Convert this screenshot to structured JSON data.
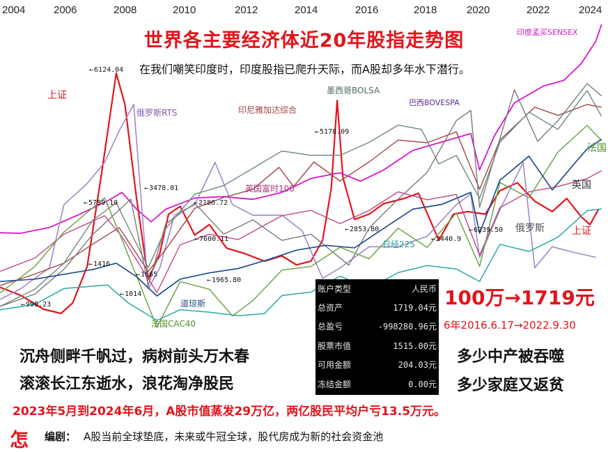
{
  "page": {
    "title": "世界各主要经济体近20年股指走势图",
    "subtitle": "在我们嘲笑印度时，印度股指已爬升天际，而A股却多年水下潜行。"
  },
  "chart_data": {
    "type": "line",
    "x_ticks": [
      "2004",
      "2006",
      "2008",
      "2010",
      "2012",
      "2014",
      "2016",
      "2018",
      "2020",
      "2022",
      "2024"
    ],
    "x_range": [
      2003.8,
      2024.6
    ],
    "grid": false,
    "series": [
      {
        "name": "上证",
        "color": "#e3131b",
        "width": 2.2,
        "x": [
          2003.8,
          2004.5,
          2005.3,
          2005.9,
          2006.3,
          2006.8,
          2007.3,
          2007.8,
          2008.1,
          2008.5,
          2008.9,
          2009.3,
          2009.6,
          2010.0,
          2010.5,
          2011.0,
          2011.6,
          2012.2,
          2012.9,
          2013.5,
          2014.0,
          2014.5,
          2014.9,
          2015.2,
          2015.4,
          2015.6,
          2016.0,
          2016.5,
          2017.0,
          2017.7,
          2018.2,
          2018.9,
          2019.4,
          2019.9,
          2020.5,
          2021.0,
          2021.6,
          2022.2,
          2022.8,
          2023.3,
          2023.8,
          2024.1,
          2024.4
        ],
        "y": [
          1600,
          1450,
          1180,
          1100,
          1300,
          2000,
          3800,
          5700,
          5100,
          3300,
          1750,
          2250,
          3000,
          3150,
          2600,
          2800,
          2350,
          2250,
          2100,
          2200,
          2030,
          2100,
          2500,
          3500,
          5178,
          3700,
          2900,
          3000,
          3200,
          3300,
          3400,
          2500,
          3000,
          3050,
          3000,
          3450,
          3600,
          3250,
          3050,
          3300,
          2950,
          2800,
          3100
        ]
      },
      {
        "name": "印度孟买SENSEX",
        "color": "#d617c8",
        "width": 1.8,
        "x": [
          2003.8,
          2004.5,
          2005.5,
          2006.5,
          2007.5,
          2008.0,
          2008.5,
          2009.0,
          2009.5,
          2010.5,
          2011.5,
          2012.5,
          2013.5,
          2014.5,
          2015.5,
          2016.2,
          2017.0,
          2018.0,
          2019.0,
          2020.0,
          2020.3,
          2020.8,
          2021.5,
          2022.5,
          2023.2,
          2023.8,
          2024.3,
          2024.5
        ],
        "y": [
          5600,
          5400,
          7500,
          12000,
          17000,
          20000,
          14000,
          9500,
          14000,
          18000,
          18500,
          17500,
          20000,
          25000,
          27000,
          24000,
          28000,
          35000,
          38000,
          41000,
          28000,
          40000,
          52000,
          58000,
          60000,
          66000,
          74000,
          80000
        ]
      },
      {
        "name": "俄罗斯RTS",
        "color": "#9f88c6",
        "width": 1.6,
        "x": [
          2003.8,
          2004.5,
          2005.5,
          2006.0,
          2006.8,
          2007.4,
          2007.9,
          2008.4,
          2008.9,
          2009.3,
          2009.8,
          2010.5,
          2011.2,
          2011.8,
          2012.5,
          2013.5,
          2014.2,
          2014.9,
          2015.5,
          2016.5,
          2017.5,
          2018.5,
          2019.5,
          2020.0,
          2020.3,
          2021.0,
          2021.8,
          2022.2,
          2022.8,
          2023.5,
          2024.3
        ],
        "y": [
          600,
          700,
          900,
          1500,
          1700,
          1900,
          2200,
          2450,
          700,
          900,
          1400,
          1500,
          1900,
          1500,
          1400,
          1400,
          1250,
          800,
          900,
          1100,
          1100,
          1200,
          1500,
          1600,
          1000,
          1450,
          1900,
          900,
          1100,
          1050,
          1000
        ]
      },
      {
        "name": "印尼雅加达综合",
        "color": "#a14646",
        "width": 1.4,
        "x": [
          2003.8,
          2005.0,
          2006.0,
          2007.0,
          2007.9,
          2008.9,
          2009.5,
          2010.5,
          2011.5,
          2012.5,
          2013.4,
          2013.9,
          2014.6,
          2015.5,
          2016.5,
          2017.5,
          2018.5,
          2019.5,
          2020.3,
          2021.0,
          2022.2,
          2023.0,
          2024.0,
          2024.5
        ],
        "y": [
          680,
          1100,
          1500,
          2200,
          2800,
          1200,
          2000,
          3500,
          3900,
          4200,
          5000,
          4300,
          5200,
          4500,
          5200,
          6000,
          5900,
          6300,
          4200,
          6000,
          7200,
          6900,
          7300,
          7200
        ]
      },
      {
        "name": "墨西哥BOLSA",
        "color": "#6f8a7b",
        "width": 1.4,
        "x": [
          2003.8,
          2005.0,
          2006.0,
          2007.0,
          2007.8,
          2008.9,
          2009.5,
          2010.5,
          2011.5,
          2012.5,
          2013.5,
          2014.5,
          2015.5,
          2016.5,
          2017.5,
          2018.3,
          2018.9,
          2019.5,
          2020.3,
          2021.0,
          2022.0,
          2023.0,
          2024.0,
          2024.5
        ],
        "y": [
          8000,
          12000,
          18000,
          28000,
          32000,
          17000,
          26000,
          34000,
          36000,
          40000,
          44000,
          43000,
          43000,
          46000,
          50000,
          49000,
          41000,
          43000,
          33000,
          46000,
          53000,
          49000,
          58000,
          52000
        ]
      },
      {
        "name": "巴西BOVESPA",
        "color": "#7a7a7a",
        "width": 1.4,
        "x": [
          2003.8,
          2005.0,
          2006.0,
          2007.0,
          2008.3,
          2008.9,
          2009.5,
          2010.5,
          2011.5,
          2012.5,
          2013.5,
          2014.5,
          2015.8,
          2016.5,
          2017.5,
          2018.5,
          2019.5,
          2020.0,
          2020.3,
          2021.5,
          2022.3,
          2023.0,
          2024.0,
          2024.5
        ],
        "y": [
          20000,
          26000,
          38000,
          55000,
          72000,
          30000,
          60000,
          70000,
          55000,
          62000,
          52000,
          55000,
          40000,
          58000,
          72000,
          85000,
          110000,
          115000,
          68000,
          125000,
          100000,
          110000,
          128000,
          122000
        ]
      },
      {
        "name": "英国富时100",
        "color": "#c0458c",
        "width": 1.4,
        "x": [
          2003.8,
          2005.0,
          2006.0,
          2007.4,
          2008.0,
          2009.2,
          2010.0,
          2011.0,
          2012.0,
          2013.5,
          2014.5,
          2015.5,
          2016.5,
          2017.5,
          2018.5,
          2019.5,
          2020.3,
          2021.0,
          2022.0,
          2023.0,
          2024.0,
          2024.5
        ],
        "y": [
          4400,
          4900,
          5800,
          6500,
          5700,
          3600,
          5400,
          5800,
          5600,
          6500,
          6700,
          6200,
          6700,
          7400,
          7100,
          7300,
          5000,
          6800,
          7400,
          7600,
          7900,
          8200
        ]
      },
      {
        "name": "法国CAC40",
        "color": "#6ea548",
        "width": 1.5,
        "x": [
          2003.8,
          2005.0,
          2006.0,
          2007.4,
          2008.0,
          2009.2,
          2010.0,
          2011.0,
          2011.8,
          2012.5,
          2013.5,
          2014.5,
          2015.5,
          2016.5,
          2017.5,
          2018.5,
          2019.5,
          2020.3,
          2021.0,
          2022.0,
          2023.0,
          2024.0,
          2024.5
        ],
        "y": [
          3600,
          4300,
          5200,
          6100,
          5000,
          2700,
          3900,
          3700,
          3000,
          3400,
          4200,
          4300,
          4800,
          4500,
          5300,
          4800,
          5700,
          4300,
          6500,
          6100,
          7300,
          8000,
          7600
        ]
      },
      {
        "name": "日经225",
        "color": "#2aa6a6",
        "width": 1.5,
        "x": [
          2003.8,
          2005.0,
          2006.0,
          2007.5,
          2008.2,
          2009.2,
          2010.0,
          2011.0,
          2012.0,
          2012.9,
          2013.5,
          2014.5,
          2015.5,
          2016.5,
          2017.5,
          2018.5,
          2019.5,
          2020.3,
          2021.0,
          2022.0,
          2023.0,
          2024.0,
          2024.5
        ],
        "y": [
          10500,
          12000,
          16500,
          17500,
          12500,
          7500,
          10500,
          9800,
          8800,
          9400,
          14500,
          15500,
          20000,
          16500,
          21000,
          23000,
          22000,
          18500,
          29000,
          27000,
          31000,
          38500,
          39000
        ]
      },
      {
        "name": "道琼斯",
        "color": "#1f4e8c",
        "width": 1.7,
        "x": [
          2003.8,
          2005.0,
          2006.0,
          2007.0,
          2007.8,
          2008.5,
          2009.2,
          2010.0,
          2011.0,
          2012.0,
          2013.0,
          2014.0,
          2015.0,
          2016.0,
          2017.0,
          2018.0,
          2019.0,
          2020.0,
          2020.3,
          2021.0,
          2022.0,
          2022.8,
          2023.5,
          2024.0,
          2024.5
        ],
        "y": [
          10000,
          10500,
          11500,
          12500,
          13800,
          11000,
          7000,
          10500,
          11800,
          12700,
          14500,
          16500,
          17500,
          17000,
          21000,
          25000,
          26000,
          28500,
          20000,
          31000,
          36000,
          29000,
          34000,
          37500,
          39500
        ]
      }
    ],
    "annotations": [
      "6124.04",
      "3478.01",
      "5759.10",
      "2186.72",
      "1416",
      "1014",
      "1665",
      "998.23",
      "7600.11",
      "1965.80",
      "5178.09",
      "6239.50",
      "2440.9",
      "2853.80"
    ],
    "inline_labels": [
      "上证",
      "俄罗斯RTS",
      "印尼雅加达综合",
      "墨西哥BOLSA",
      "巴西BOVESPA",
      "印度孟买SENSEX",
      "法国",
      "英国富时100",
      "英国",
      "日经225",
      "俄罗斯",
      "上证",
      "道琼斯",
      "法国CAC40"
    ]
  },
  "account": {
    "rows": [
      {
        "k": "账户类型",
        "v": "人民币"
      },
      {
        "k": "总资产",
        "v": "1719.04元"
      },
      {
        "k": "总盈亏",
        "v": "-998280.96元"
      },
      {
        "k": "股票市值",
        "v": "1515.00元"
      },
      {
        "k": "可用金额",
        "v": "204.03元"
      },
      {
        "k": "冻结金额",
        "v": "0.00元"
      }
    ]
  },
  "captions": {
    "loss": "100万→1719元",
    "period": "6年2016.6.17→2022.9.30",
    "poem1": "沉舟侧畔千帆过，病树前头万木春",
    "poem2": "滚滚长江东逝水，浪花淘净股民",
    "right1": "多少中产被吞噬",
    "right2": "多少家庭又返贫",
    "bottom": "2023年5月到2024年6月，A股市值蒸发29万亿，两亿股民平均户亏13.5万元。",
    "editor_mark": "怎",
    "editor_label": "编剧：",
    "editor_text": "A股当前全球垫底，未来或牛冠全球，股代房成为新的社会资金池"
  }
}
